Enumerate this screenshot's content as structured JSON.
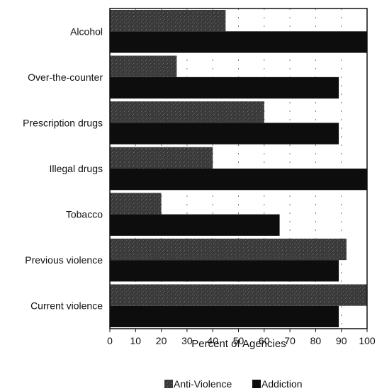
{
  "chart_data": {
    "type": "bar",
    "orientation": "horizontal",
    "categories": [
      "Alcohol",
      "Over-the-counter",
      "Prescription drugs",
      "Illegal drugs",
      "Tobacco",
      "Previous violence",
      "Current violence"
    ],
    "series": [
      {
        "name": "Anti-Violence",
        "values": [
          45,
          26,
          60,
          40,
          20,
          92,
          100
        ]
      },
      {
        "name": "Addiction",
        "values": [
          100,
          89,
          89,
          100,
          66,
          89,
          89
        ]
      }
    ],
    "xlabel": "Percent of Agencies",
    "ylabel": "",
    "xlim": [
      0,
      100
    ],
    "xticks": [
      "0",
      "10",
      "20",
      "30",
      "40",
      "50",
      "60",
      "70",
      "80",
      "90",
      "100"
    ],
    "grid": "vertical-dotted",
    "legend_position": "bottom",
    "colors": {
      "Anti-Violence": "#3a3a3a",
      "Addiction": "#0d0d0d",
      "grid": "#777777"
    }
  }
}
